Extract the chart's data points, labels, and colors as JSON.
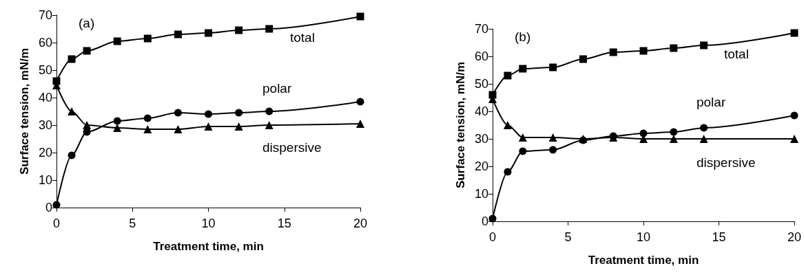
{
  "chart_data": [
    {
      "type": "line",
      "annotations": [
        "(a)"
      ],
      "xlabel": "Treatment time, min",
      "ylabel": "Surface tension, mN/m",
      "x": [
        0,
        1,
        2,
        4,
        6,
        8,
        10,
        12,
        14,
        20
      ],
      "xlim": [
        0,
        20
      ],
      "xticks": [
        0,
        5,
        10,
        15,
        20
      ],
      "ylim": [
        0,
        70
      ],
      "yticks": [
        0,
        10,
        20,
        30,
        40,
        50,
        60,
        70
      ],
      "grid": false,
      "legend": false,
      "line_style": "solid",
      "series": [
        {
          "name": "total",
          "color": "#000000",
          "marker": "square",
          "values": [
            46,
            54,
            57,
            60.5,
            61.5,
            63,
            63.5,
            64.5,
            65,
            69.5
          ]
        },
        {
          "name": "polar",
          "color": "#000000",
          "marker": "circle",
          "values": [
            1,
            19,
            27.5,
            31.5,
            32.5,
            34.5,
            34,
            34.5,
            35,
            38.5
          ]
        },
        {
          "name": "dispersive",
          "color": "#000000",
          "marker": "triangle",
          "values": [
            44.5,
            35,
            30,
            29,
            28.5,
            28.5,
            29.5,
            29.5,
            30,
            30.5
          ]
        }
      ]
    },
    {
      "type": "line",
      "annotations": [
        "(b)"
      ],
      "xlabel": "Treatment time, min",
      "ylabel": "Surface tension, mN/m",
      "x": [
        0,
        1,
        2,
        4,
        6,
        8,
        10,
        12,
        14,
        20
      ],
      "xlim": [
        0,
        20
      ],
      "xticks": [
        0,
        5,
        10,
        15,
        20
      ],
      "ylim": [
        0,
        70
      ],
      "yticks": [
        0,
        10,
        20,
        30,
        40,
        50,
        60,
        70
      ],
      "grid": false,
      "legend": false,
      "line_style": "solid",
      "series": [
        {
          "name": "total",
          "color": "#000000",
          "marker": "square",
          "values": [
            46,
            53,
            55.5,
            56,
            59,
            61.5,
            62,
            63,
            64,
            68.5
          ]
        },
        {
          "name": "polar",
          "color": "#000000",
          "marker": "circle",
          "values": [
            1,
            18,
            25.5,
            26,
            29.5,
            31,
            32,
            32.5,
            34,
            38.5
          ]
        },
        {
          "name": "dispersive",
          "color": "#000000",
          "marker": "triangle",
          "values": [
            44.5,
            35,
            30.5,
            30.5,
            30,
            30.5,
            30,
            30,
            30,
            30
          ]
        }
      ]
    }
  ]
}
